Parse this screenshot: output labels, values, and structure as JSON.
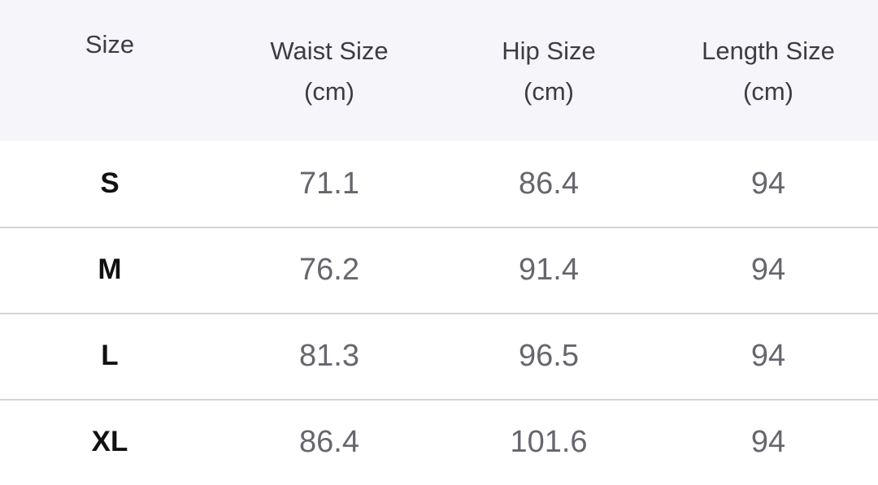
{
  "table": {
    "header": [
      {
        "label": "Size"
      },
      {
        "label": "Waist Size",
        "unit": "(cm)"
      },
      {
        "label": "Hip Size",
        "unit": "(cm)"
      },
      {
        "label": "Length Size",
        "unit": "(cm)"
      }
    ],
    "rows": [
      [
        "S",
        "71.1",
        "86.4",
        "94"
      ],
      [
        "M",
        "76.2",
        "91.4",
        "94"
      ],
      [
        "L",
        "81.3",
        "96.5",
        "94"
      ],
      [
        "XL",
        "86.4",
        "101.6",
        "94"
      ]
    ]
  }
}
